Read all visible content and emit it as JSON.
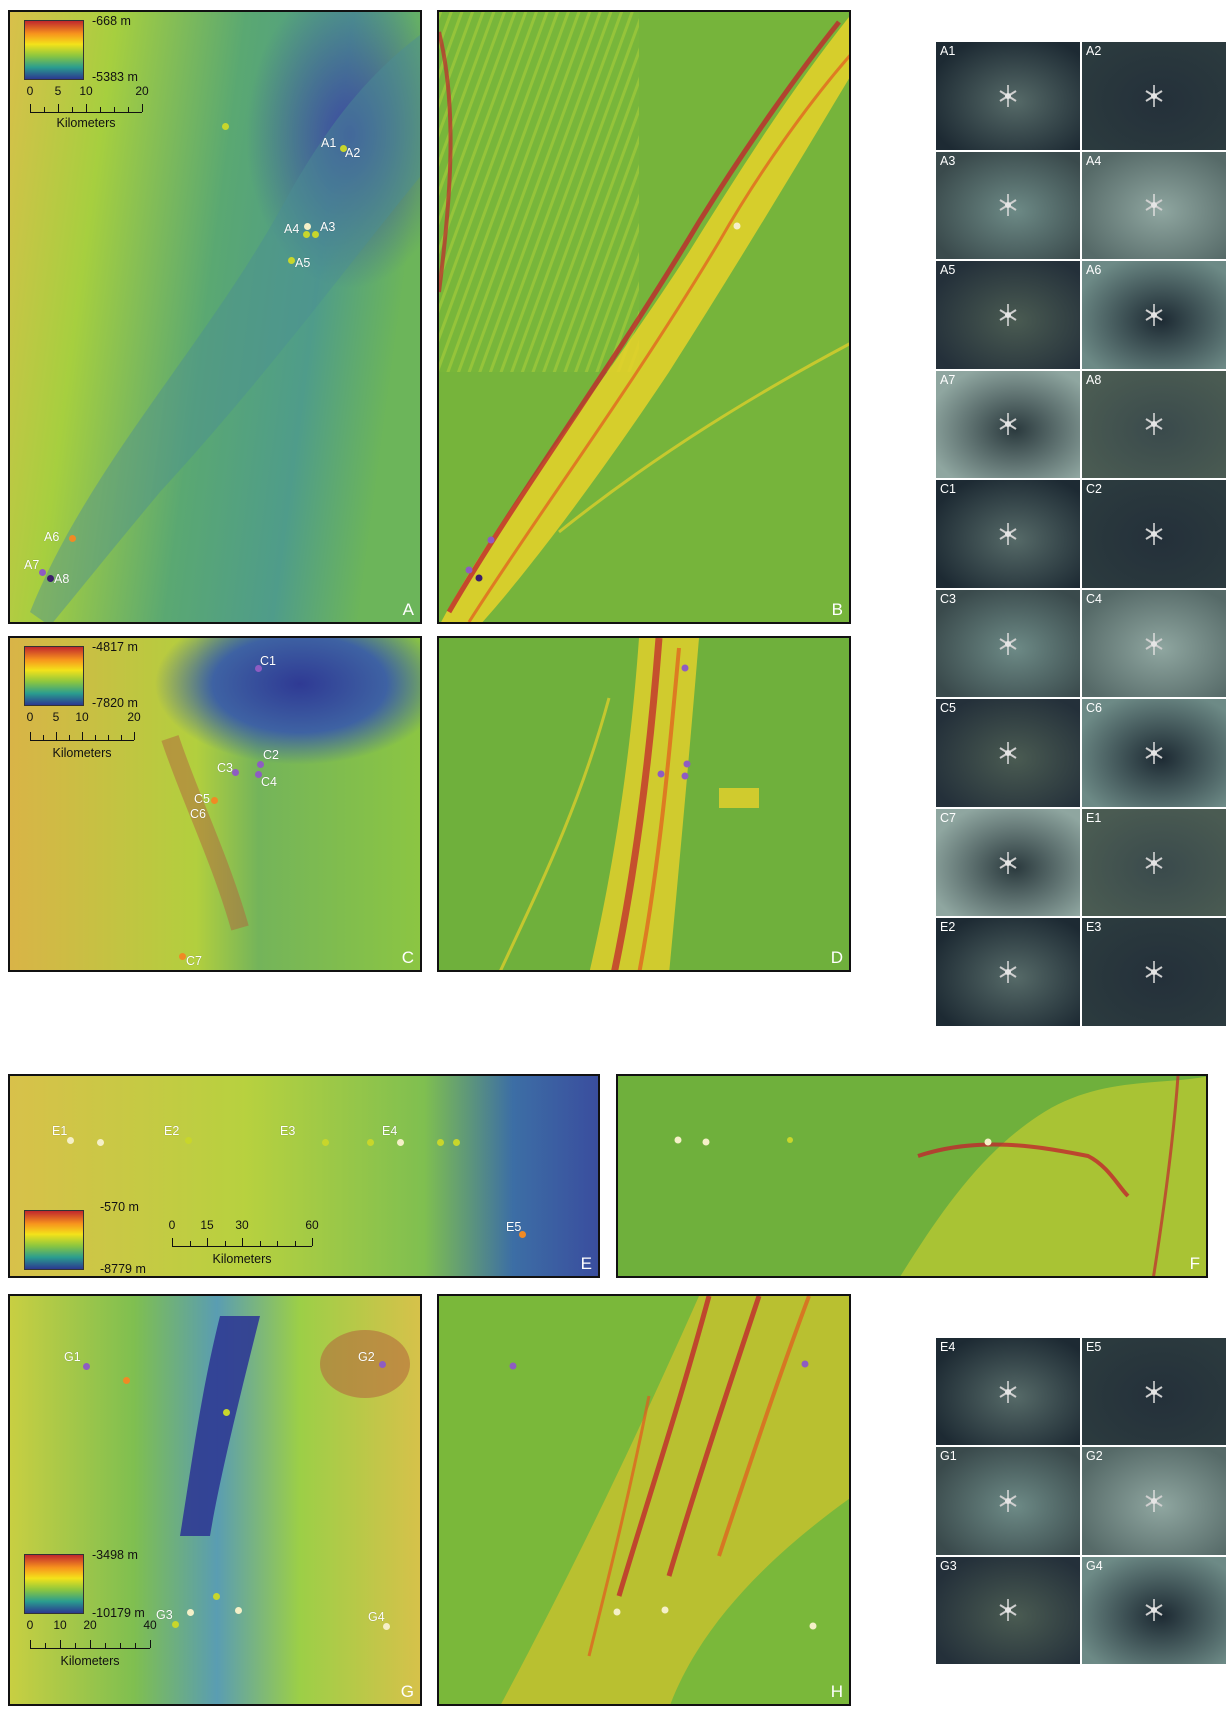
{
  "panels": {
    "A": {
      "label": "A",
      "top": "-668 m",
      "bottom": "-5383 m",
      "scale": [
        "0",
        "5",
        "10",
        "20"
      ],
      "unit": "Kilometers",
      "sites": [
        {
          "name": "A1",
          "dot": "#c8d62b"
        },
        {
          "name": "A2",
          "dot": "#c8d62b"
        },
        {
          "name": "A3",
          "dot": "#c8d62b"
        },
        {
          "name": "A4",
          "dot": "#f5f0c8"
        },
        {
          "name": "A5",
          "dot": "#c8d62b"
        },
        {
          "name": "A6",
          "dot": "#f08a24"
        },
        {
          "name": "A7",
          "dot": "#8e5cc2"
        },
        {
          "name": "A8",
          "dot": "#3b1e6b"
        }
      ]
    },
    "B": {
      "label": "B"
    },
    "C": {
      "label": "C",
      "top": "-4817 m",
      "bottom": "-7820 m",
      "scale": [
        "0",
        "5",
        "10",
        "20"
      ],
      "unit": "Kilometers",
      "sites": [
        {
          "name": "C1",
          "dot": "#8e5cc2"
        },
        {
          "name": "C2",
          "dot": "#8e5cc2"
        },
        {
          "name": "C3",
          "dot": "#8e5cc2"
        },
        {
          "name": "C4",
          "dot": "#8e5cc2"
        },
        {
          "name": "C5",
          "dot": "#f08a24"
        },
        {
          "name": "C6",
          "dot": "#f08a24"
        },
        {
          "name": "C7",
          "dot": "#f08a24"
        }
      ]
    },
    "D": {
      "label": "D"
    },
    "E": {
      "label": "E",
      "top": "-570 m",
      "bottom": "-8779 m",
      "scale": [
        "0",
        "15",
        "30",
        "60"
      ],
      "unit": "Kilometers",
      "sites": [
        {
          "name": "E1",
          "dot": "#f5f0c8"
        },
        {
          "name": "E2",
          "dot": "#c8d62b"
        },
        {
          "name": "E3",
          "dot": "#c8d62b"
        },
        {
          "name": "E4",
          "dot": "#f5f0c8"
        },
        {
          "name": "E5",
          "dot": "#f08a24"
        }
      ]
    },
    "F": {
      "label": "F"
    },
    "G": {
      "label": "G",
      "top": "-3498 m",
      "bottom": "-10179 m",
      "scale": [
        "0",
        "10",
        "20",
        "40"
      ],
      "unit": "Kilometers",
      "sites": [
        {
          "name": "G1",
          "dot": "#8e5cc2"
        },
        {
          "name": "G2",
          "dot": "#8e5cc2"
        },
        {
          "name": "G3",
          "dot": "#c8d62b"
        },
        {
          "name": "G4",
          "dot": "#f5f0c8"
        }
      ]
    },
    "H": {
      "label": "H"
    }
  },
  "photos_top": [
    "A1",
    "A2",
    "A3",
    "A4",
    "A5",
    "A6",
    "A7",
    "A8",
    "C1",
    "C2",
    "C3",
    "C4",
    "C5",
    "C6",
    "C7",
    "E1",
    "E2",
    "E3"
  ],
  "photos_bottom": [
    "E4",
    "E5",
    "G1",
    "G2",
    "G3",
    "G4"
  ],
  "colors": {
    "deep": "#2b3990",
    "mid": "#6dbb45",
    "shallow": "#e0b43a",
    "slope_low": "#7ab83a",
    "slope_high": "#c1272d"
  }
}
